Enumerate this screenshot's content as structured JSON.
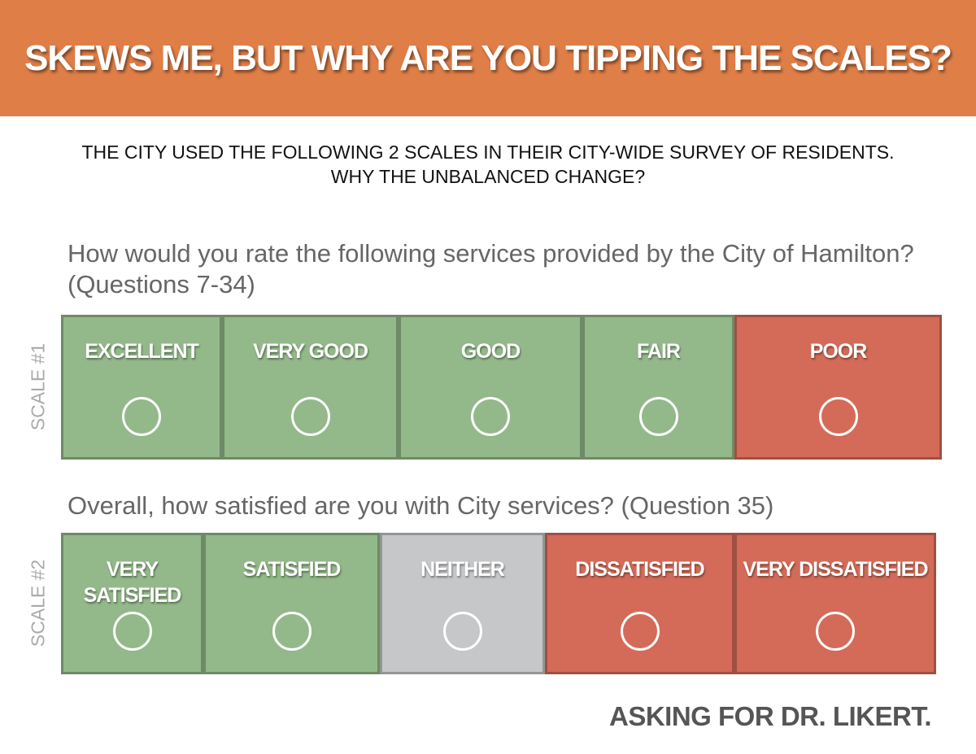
{
  "header": {
    "title": "SKEWS ME, BUT WHY ARE YOU TIPPING THE SCALES?"
  },
  "intro": "THE CITY USED THE FOLLOWING 2 SCALES IN THEIR CITY-WIDE SURVEY OF RESIDENTS. WHY THE UNBALANCED CHANGE?",
  "scales": [
    {
      "label": "SCALE #1",
      "question": "How would you rate the following services provided by the City of Hamilton? (Questions 7-34)",
      "options": [
        {
          "label": "EXCELLENT",
          "color": "#93b88a"
        },
        {
          "label": "VERY GOOD",
          "color": "#93b88a"
        },
        {
          "label": "GOOD",
          "color": "#93b88a"
        },
        {
          "label": "FAIR",
          "color": "#93b88a"
        },
        {
          "label": "POOR",
          "color": "#d36b58"
        }
      ]
    },
    {
      "label": "SCALE #2",
      "question": "Overall, how satisfied are you with City services? (Question 35)",
      "options": [
        {
          "label": "VERY SATISFIED",
          "color": "#93b88a"
        },
        {
          "label": "SATISFIED",
          "color": "#93b88a"
        },
        {
          "label": "NEITHER",
          "color": "#c6c7c9"
        },
        {
          "label": "DISSATISFIED",
          "color": "#d36b58"
        },
        {
          "label": "VERY DISSATISFIED",
          "color": "#d36b58"
        }
      ]
    }
  ],
  "footer": "ASKING FOR DR. LIKERT."
}
